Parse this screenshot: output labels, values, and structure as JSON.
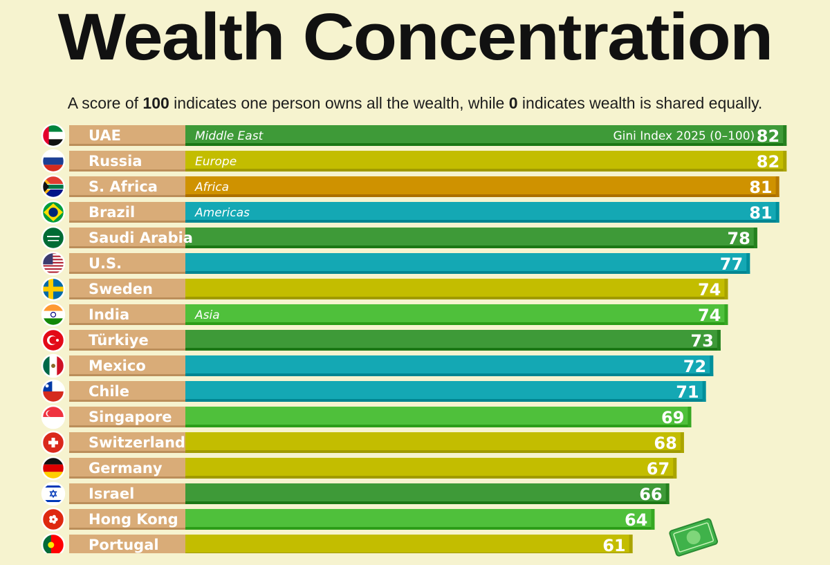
{
  "header": {
    "title": "Wealth Concentration",
    "subtitle_parts": [
      "A score of ",
      "100",
      " indicates one person owns all the wealth, while ",
      "0",
      " indicates wealth is shared equally."
    ]
  },
  "colors": {
    "Middle East": "#3e9a38",
    "Europe": "#c3bd00",
    "Africa": "#cf9200",
    "Americas": "#14a8b4",
    "Asia": "#4fc03b",
    "label_tab": "#d9ac78",
    "background": "#f6f3cf"
  },
  "chart_data": {
    "type": "bar",
    "orientation": "horizontal",
    "value_axis_label": "Gini Index 2025 (0–100)",
    "xlim": [
      0,
      100
    ],
    "categories": [
      "UAE",
      "Russia",
      "S. Africa",
      "Brazil",
      "Saudi Arabia",
      "U.S.",
      "Sweden",
      "India",
      "Türkiye",
      "Mexico",
      "Chile",
      "Singapore",
      "Switzerland",
      "Germany",
      "Israel",
      "Hong Kong",
      "Portugal"
    ],
    "values": [
      82,
      82,
      81,
      81,
      78,
      77,
      74,
      74,
      73,
      72,
      71,
      69,
      68,
      67,
      66,
      64,
      61
    ],
    "regions": [
      "Middle East",
      "Europe",
      "Africa",
      "Americas",
      "Middle East",
      "Americas",
      "Europe",
      "Asia",
      "Middle East",
      "Americas",
      "Americas",
      "Asia",
      "Europe",
      "Europe",
      "Middle East",
      "Asia",
      "Europe"
    ],
    "region_labels": [
      "Middle East",
      "Europe",
      "Africa",
      "Americas",
      "",
      "",
      "",
      "Asia",
      "",
      "",
      "",
      "",
      "",
      "",
      "",
      "",
      ""
    ],
    "flag_icons": [
      "uae-flag-icon",
      "russia-flag-icon",
      "south-africa-flag-icon",
      "brazil-flag-icon",
      "saudi-arabia-flag-icon",
      "us-flag-icon",
      "sweden-flag-icon",
      "india-flag-icon",
      "turkiye-flag-icon",
      "mexico-flag-icon",
      "chile-flag-icon",
      "singapore-flag-icon",
      "switzerland-flag-icon",
      "germany-flag-icon",
      "israel-flag-icon",
      "hong-kong-flag-icon",
      "portugal-flag-icon"
    ]
  }
}
